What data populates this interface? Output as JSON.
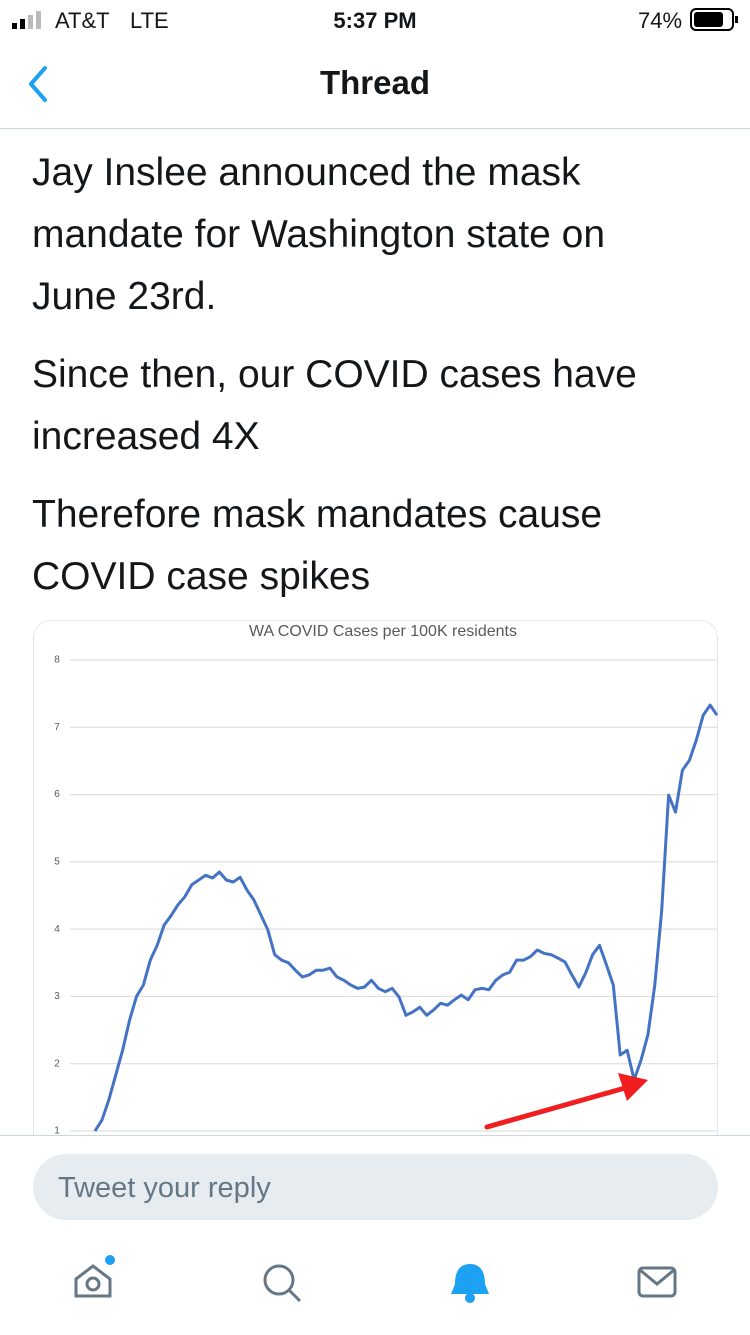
{
  "status": {
    "carrier": "AT&T",
    "network": "LTE",
    "time": "5:37 PM",
    "battery": "74%"
  },
  "header": {
    "title": "Thread"
  },
  "tweet": {
    "paragraphs": [
      [
        "Jay Inslee announced the mask",
        "mandate for Washington state on",
        "June 23rd."
      ],
      [
        "Since then, our COVID cases have",
        "increased 4X"
      ],
      [
        "Therefore mask mandates cause",
        "COVID case spikes"
      ]
    ]
  },
  "chart_data": {
    "type": "line",
    "title": "WA COVID Cases per 100K residents",
    "color": "#4472c4",
    "grid": true,
    "ylim": [
      1,
      8
    ],
    "yticks": [
      1,
      2,
      3,
      4,
      5,
      6,
      7,
      8
    ],
    "values": [
      1.0,
      1.16,
      1.46,
      1.83,
      2.2,
      2.65,
      3.0,
      3.17,
      3.54,
      3.76,
      4.06,
      4.2,
      4.36,
      4.48,
      4.66,
      4.73,
      4.8,
      4.76,
      4.85,
      4.73,
      4.7,
      4.77,
      4.58,
      4.43,
      4.21,
      3.99,
      3.62,
      3.54,
      3.5,
      3.39,
      3.29,
      3.32,
      3.39,
      3.39,
      3.42,
      3.29,
      3.24,
      3.17,
      3.12,
      3.14,
      3.24,
      3.12,
      3.07,
      3.12,
      2.99,
      2.72,
      2.77,
      2.84,
      2.72,
      2.8,
      2.9,
      2.87,
      2.95,
      3.02,
      2.95,
      3.1,
      3.12,
      3.1,
      3.24,
      3.32,
      3.36,
      3.54,
      3.54,
      3.59,
      3.69,
      3.64,
      3.62,
      3.57,
      3.51,
      3.32,
      3.14,
      3.35,
      3.62,
      3.76,
      3.47,
      3.17,
      2.13,
      2.2,
      1.76,
      2.05,
      2.43,
      3.17,
      4.28,
      5.99,
      5.74,
      6.36,
      6.51,
      6.81,
      7.18,
      7.33,
      7.18
    ]
  },
  "reply": {
    "placeholder": "Tweet your reply"
  }
}
